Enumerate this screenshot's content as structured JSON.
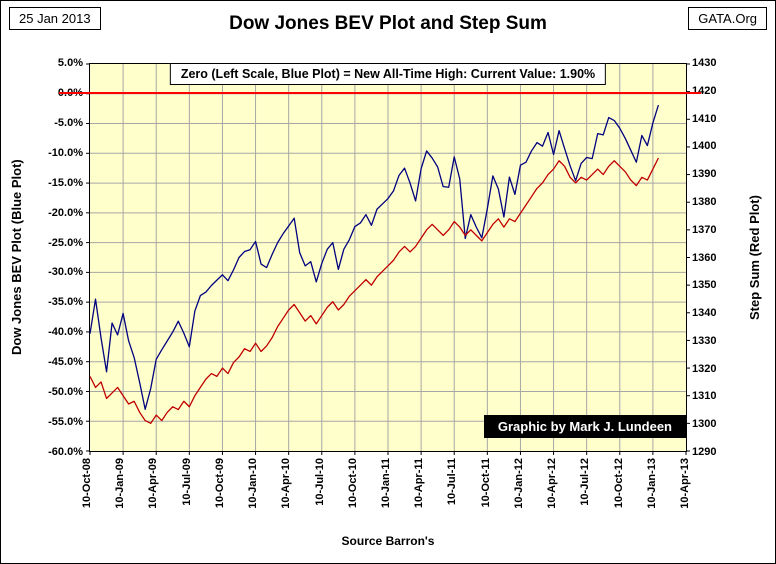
{
  "header": {
    "date": "25 Jan 2013",
    "site": "GATA.Org",
    "title": "Dow Jones BEV Plot and Step Sum"
  },
  "annotation": {
    "text": "Zero (Left Scale, Blue Plot) = New All-Time High:  Current  Value: 1.90%"
  },
  "credit": "Graphic by Mark J. Lundeen",
  "source": "Source Barron's",
  "chart_data": {
    "type": "line",
    "title": "Dow Jones BEV Plot and Step Sum",
    "plot_bg_color": "#FFFFCC",
    "grid_color": "#A6A6A6",
    "zero_line": {
      "value": 0,
      "color": "#FF0000"
    },
    "left_axis": {
      "label": "Dow Jones BEV Plot  (Blue Plot)",
      "max": 5,
      "min": -60,
      "tick_step": 5,
      "ticks": [
        "5.0%",
        "0.0%",
        "-5.0%",
        "-10.0%",
        "-15.0%",
        "-20.0%",
        "-25.0%",
        "-30.0%",
        "-35.0%",
        "-40.0%",
        "-45.0%",
        "-50.0%",
        "-55.0%",
        "-60.0%"
      ]
    },
    "right_axis": {
      "label": "Step Sum (Red Plot)",
      "max": 1430,
      "min": 1290,
      "tick_step": 10,
      "ticks": [
        "1430",
        "1420",
        "1410",
        "1400",
        "1390",
        "1380",
        "1370",
        "1360",
        "1350",
        "1340",
        "1330",
        "1320",
        "1310",
        "1300",
        "1290"
      ]
    },
    "x_axis": {
      "start_month": 0,
      "end_month": 54,
      "tick_interval_months": 3,
      "ticks": [
        "10-Oct-08",
        "10-Jan-09",
        "10-Apr-09",
        "10-Jul-09",
        "10-Oct-09",
        "10-Jan-10",
        "10-Apr-10",
        "10-Jul-10",
        "10-Oct-10",
        "10-Jan-11",
        "10-Apr-11",
        "10-Jul-11",
        "10-Oct-11",
        "10-Jan-12",
        "10-Apr-12",
        "10-Jul-12",
        "10-Oct-12",
        "10-Jan-13",
        "10-Apr-13"
      ]
    },
    "series": [
      {
        "id": "bev",
        "name": "Dow Jones BEV Plot",
        "axis": "left",
        "color": "#000080",
        "x_start_month": 0,
        "x_step_months": 0.5,
        "values": [
          -40.3,
          -34.5,
          -41.0,
          -46.7,
          -38.5,
          -40.5,
          -36.9,
          -41.5,
          -44.3,
          -48.5,
          -53.0,
          -49.5,
          -44.6,
          -43.0,
          -41.5,
          -40.0,
          -38.2,
          -40.2,
          -42.5,
          -36.5,
          -33.9,
          -33.3,
          -32.2,
          -31.3,
          -30.4,
          -31.4,
          -29.6,
          -27.5,
          -26.5,
          -26.2,
          -24.8,
          -28.6,
          -29.2,
          -27.0,
          -25.0,
          -23.5,
          -22.2,
          -20.9,
          -26.7,
          -28.9,
          -28.2,
          -31.6,
          -28.5,
          -26.1,
          -25.0,
          -29.5,
          -26.1,
          -24.5,
          -22.3,
          -21.7,
          -20.3,
          -22.1,
          -19.4,
          -18.5,
          -17.6,
          -16.3,
          -13.7,
          -12.5,
          -15.0,
          -18.0,
          -12.6,
          -9.6,
          -10.8,
          -12.3,
          -15.6,
          -15.7,
          -10.6,
          -14.3,
          -24.3,
          -20.3,
          -22.4,
          -24.2,
          -19.3,
          -13.8,
          -16.0,
          -20.7,
          -14.0,
          -16.9,
          -12.0,
          -11.5,
          -9.6,
          -8.2,
          -8.8,
          -6.5,
          -10.2,
          -6.2,
          -9.2,
          -12.1,
          -14.6,
          -11.7,
          -10.7,
          -10.9,
          -6.7,
          -6.9,
          -4.0,
          -4.5,
          -5.8,
          -7.5,
          -9.5,
          -11.5,
          -7.0,
          -8.7,
          -4.9,
          -1.9
        ]
      },
      {
        "id": "step-sum",
        "name": "Step Sum",
        "axis": "right",
        "color": "#C00000",
        "x_start_month": 0,
        "x_step_months": 0.5,
        "values": [
          1317,
          1313,
          1315,
          1309,
          1311,
          1313,
          1310,
          1307,
          1308,
          1304,
          1301,
          1300,
          1303,
          1301,
          1304,
          1306,
          1305,
          1308,
          1306,
          1310,
          1313,
          1316,
          1318,
          1317,
          1320,
          1318,
          1322,
          1324,
          1327,
          1326,
          1329,
          1326,
          1328,
          1331,
          1335,
          1338,
          1341,
          1343,
          1340,
          1337,
          1339,
          1336,
          1339,
          1342,
          1344,
          1341,
          1343,
          1346,
          1348,
          1350,
          1352,
          1350,
          1353,
          1355,
          1357,
          1359,
          1362,
          1364,
          1362,
          1364,
          1367,
          1370,
          1372,
          1370,
          1368,
          1370,
          1373,
          1371,
          1368,
          1370,
          1368,
          1366,
          1369,
          1372,
          1374,
          1371,
          1374,
          1373,
          1376,
          1379,
          1382,
          1385,
          1387,
          1390,
          1392,
          1395,
          1393,
          1389,
          1387,
          1389,
          1388,
          1390,
          1392,
          1390,
          1393,
          1395,
          1393,
          1391,
          1388,
          1386,
          1389,
          1388,
          1392,
          1396
        ]
      }
    ]
  }
}
